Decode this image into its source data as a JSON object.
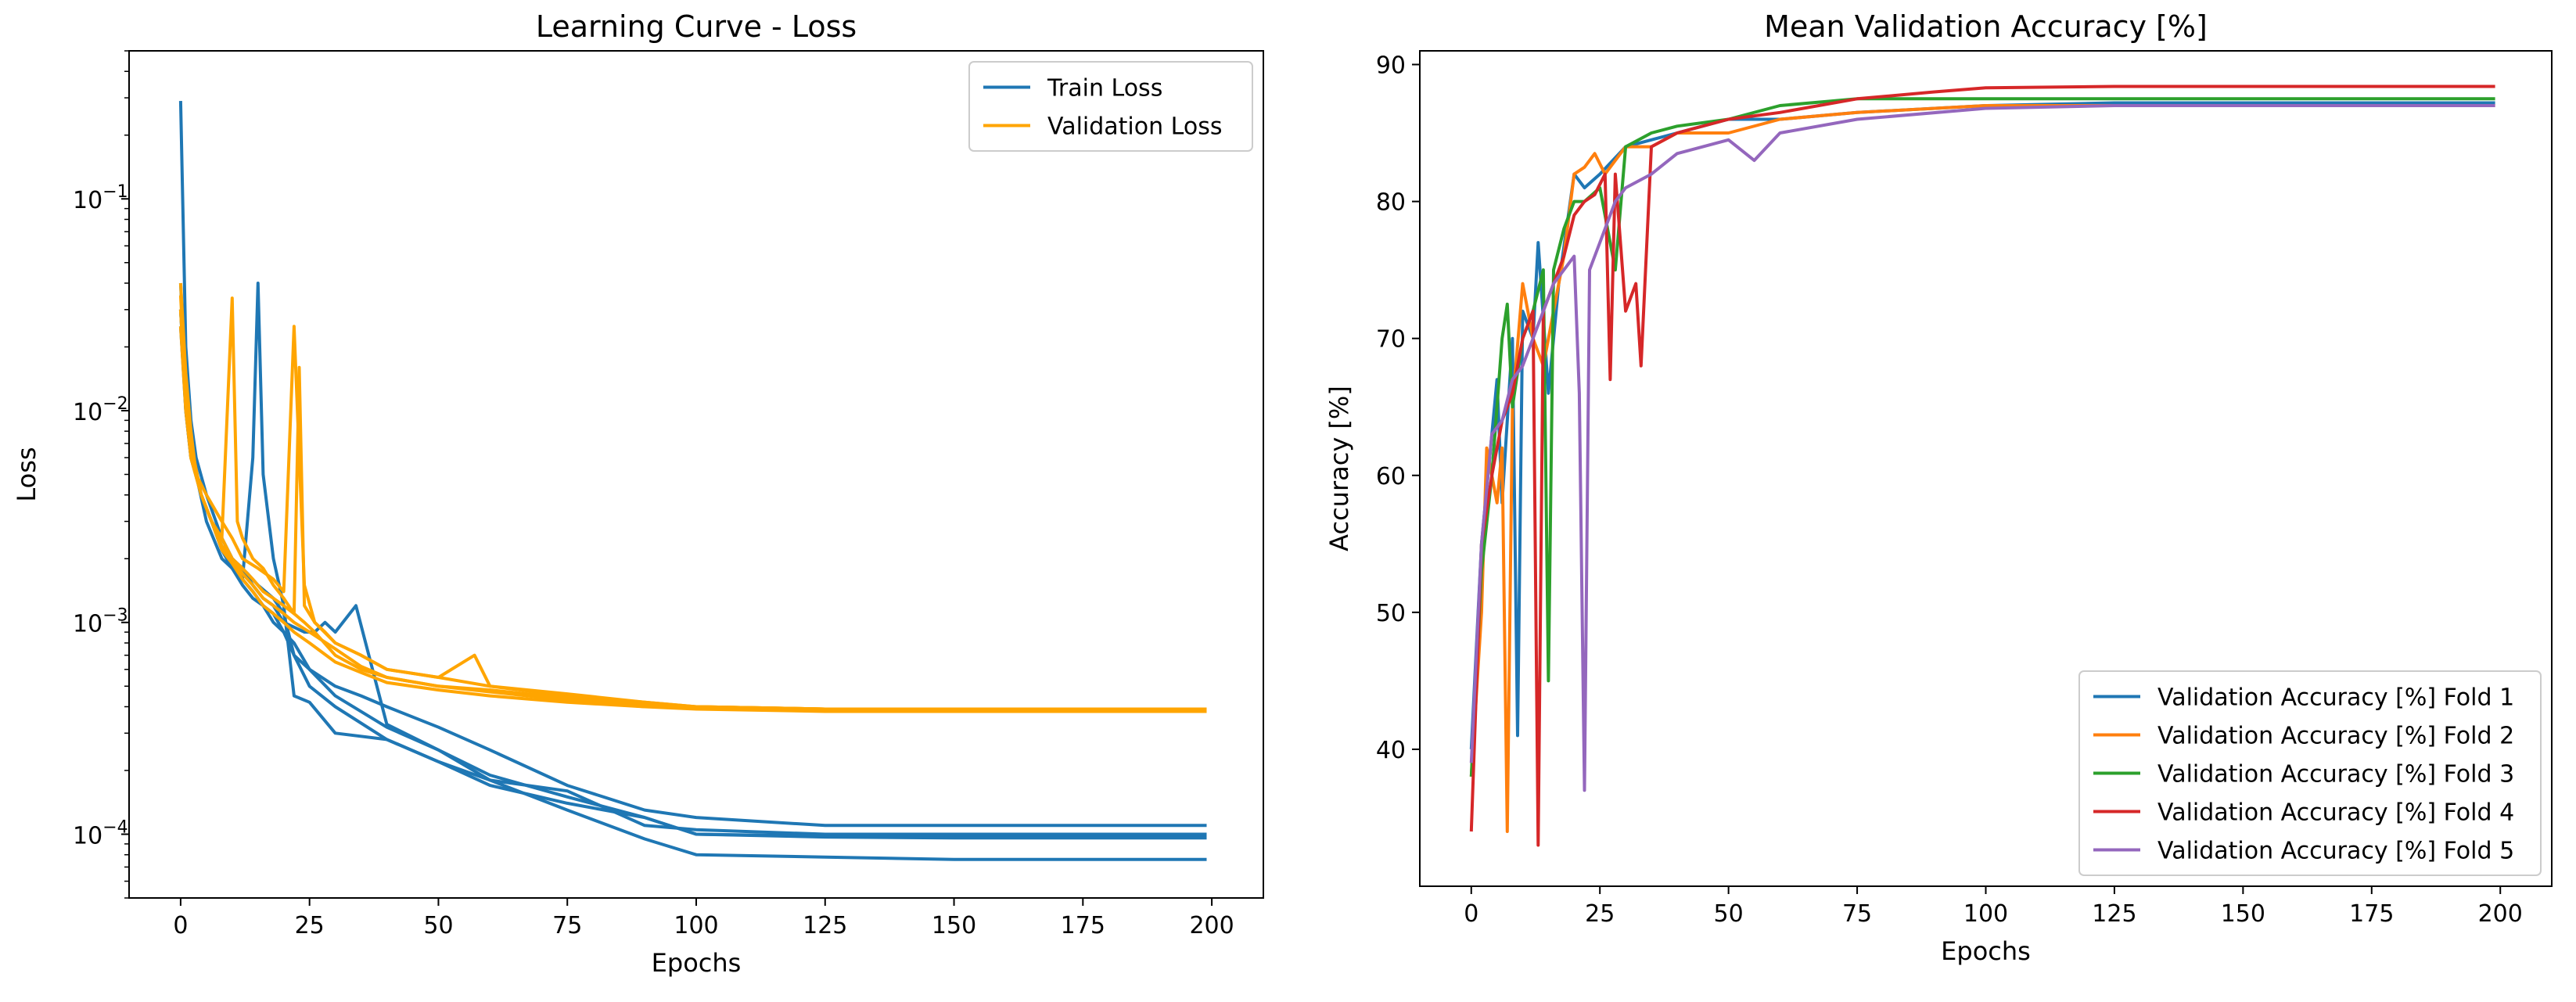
{
  "colors": {
    "train": "#1f77b4",
    "validation": "#ffa500",
    "fold1": "#1f77b4",
    "fold2": "#ff7f0e",
    "fold3": "#2ca02c",
    "fold4": "#d62728",
    "fold5": "#9467bd"
  },
  "chart_data": [
    {
      "type": "line",
      "title": "Learning Curve - Loss",
      "xlabel": "Epochs",
      "ylabel": "Loss",
      "yscale": "log",
      "xlim": [
        -10,
        210
      ],
      "ylim": [
        5e-05,
        0.5
      ],
      "xticks": [
        0,
        25,
        50,
        75,
        100,
        125,
        150,
        175,
        200
      ],
      "yticks": [
        {
          "value": 0.0001,
          "base": "10",
          "exp": "−4"
        },
        {
          "value": 0.001,
          "base": "10",
          "exp": "−3"
        },
        {
          "value": 0.01,
          "base": "10",
          "exp": "−2"
        },
        {
          "value": 0.1,
          "base": "10",
          "exp": "−1"
        }
      ],
      "legend": {
        "location": "top-right",
        "entries": [
          "Train Loss",
          "Validation Loss"
        ]
      },
      "series": [
        {
          "name": "Train Loss",
          "fold": 1,
          "color": "train",
          "x": [
            0,
            1,
            2,
            3,
            5,
            8,
            10,
            13,
            15,
            18,
            20,
            22,
            25,
            30,
            35,
            40,
            50,
            60,
            75,
            90,
            100,
            125,
            150,
            175,
            199
          ],
          "y": [
            0.29,
            0.02,
            0.009,
            0.006,
            0.004,
            0.0025,
            0.002,
            0.0017,
            0.0015,
            0.0013,
            0.0011,
            0.0007,
            0.0006,
            0.0005,
            0.00045,
            0.0004,
            0.00032,
            0.00025,
            0.00017,
            0.00013,
            0.00012,
            0.00011,
            0.00011,
            0.00011,
            0.00011
          ]
        },
        {
          "name": "Train Loss",
          "fold": 2,
          "color": "train",
          "x": [
            0,
            1,
            2,
            3,
            5,
            8,
            10,
            12,
            14,
            15,
            16,
            18,
            20,
            22,
            25,
            30,
            40,
            50,
            60,
            75,
            90,
            100,
            125,
            150,
            175,
            199
          ],
          "y": [
            0.03,
            0.012,
            0.006,
            0.005,
            0.003,
            0.002,
            0.0018,
            0.0016,
            0.006,
            0.04,
            0.005,
            0.002,
            0.0012,
            0.00045,
            0.00042,
            0.0003,
            0.00028,
            0.00022,
            0.00018,
            0.00016,
            0.00011,
            0.000105,
            0.0001,
            0.0001,
            0.0001,
            0.0001
          ]
        },
        {
          "name": "Train Loss",
          "fold": 3,
          "color": "train",
          "x": [
            0,
            1,
            2,
            4,
            6,
            8,
            10,
            12,
            14,
            16,
            18,
            20,
            22,
            24,
            26,
            28,
            30,
            34,
            40,
            50,
            60,
            75,
            90,
            100,
            125,
            150,
            175,
            199
          ],
          "y": [
            0.04,
            0.012,
            0.007,
            0.004,
            0.003,
            0.0025,
            0.002,
            0.0018,
            0.0015,
            0.0013,
            0.0012,
            0.001,
            0.00095,
            0.0009,
            0.0009,
            0.001,
            0.0009,
            0.0012,
            0.00033,
            0.00025,
            0.00019,
            0.00015,
            0.00012,
            0.0001,
            9.8e-05,
            9.7e-05,
            9.7e-05,
            9.7e-05
          ]
        },
        {
          "name": "Train Loss",
          "fold": 4,
          "color": "train",
          "x": [
            0,
            1,
            2,
            4,
            6,
            8,
            10,
            12,
            14,
            16,
            18,
            20,
            22,
            25,
            30,
            40,
            50,
            60,
            75,
            90,
            100,
            125,
            150,
            175,
            199
          ],
          "y": [
            0.03,
            0.01,
            0.006,
            0.004,
            0.003,
            0.0022,
            0.0018,
            0.0015,
            0.0013,
            0.0012,
            0.001,
            0.0009,
            0.0007,
            0.0005,
            0.0004,
            0.00028,
            0.00022,
            0.00017,
            0.00014,
            0.00012,
            0.0001,
            9.7e-05,
            9.6e-05,
            9.6e-05,
            9.6e-05
          ]
        },
        {
          "name": "Train Loss",
          "fold": 5,
          "color": "train",
          "x": [
            0,
            1,
            2,
            4,
            6,
            8,
            10,
            12,
            14,
            16,
            18,
            20,
            22,
            25,
            30,
            40,
            50,
            60,
            75,
            90,
            100,
            125,
            150,
            175,
            199
          ],
          "y": [
            0.025,
            0.01,
            0.006,
            0.004,
            0.003,
            0.0022,
            0.0018,
            0.0016,
            0.0014,
            0.0012,
            0.0011,
            0.0009,
            0.0008,
            0.0006,
            0.00045,
            0.00032,
            0.00025,
            0.00018,
            0.00013,
            9.5e-05,
            8e-05,
            7.8e-05,
            7.6e-05,
            7.6e-05,
            7.6e-05
          ]
        },
        {
          "name": "Validation Loss",
          "fold": 1,
          "color": "validation",
          "x": [
            0,
            1,
            2,
            3,
            5,
            8,
            10,
            12,
            15,
            18,
            20,
            22,
            24,
            26,
            28,
            30,
            35,
            40,
            50,
            60,
            75,
            90,
            100,
            125,
            150,
            175,
            199
          ],
          "y": [
            0.04,
            0.015,
            0.008,
            0.005,
            0.004,
            0.003,
            0.0025,
            0.002,
            0.0018,
            0.0016,
            0.0014,
            0.025,
            0.0015,
            0.001,
            0.0009,
            0.0008,
            0.0007,
            0.0006,
            0.00055,
            0.0005,
            0.00045,
            0.00042,
            0.0004,
            0.00039,
            0.00039,
            0.00039,
            0.00039
          ]
        },
        {
          "name": "Validation Loss",
          "fold": 2,
          "color": "validation",
          "x": [
            0,
            1,
            2,
            4,
            6,
            8,
            10,
            11,
            12,
            14,
            16,
            18,
            20,
            22,
            24,
            26,
            30,
            35,
            40,
            50,
            60,
            75,
            90,
            100,
            125,
            150,
            175,
            199
          ],
          "y": [
            0.035,
            0.012,
            0.007,
            0.004,
            0.003,
            0.0025,
            0.034,
            0.003,
            0.0025,
            0.002,
            0.0018,
            0.0015,
            0.0013,
            0.0011,
            0.001,
            0.0009,
            0.0007,
            0.0006,
            0.00055,
            0.0005,
            0.00048,
            0.00044,
            0.00041,
            0.0004,
            0.00039,
            0.00039,
            0.00039,
            0.00039
          ]
        },
        {
          "name": "Validation Loss",
          "fold": 3,
          "color": "validation",
          "x": [
            0,
            1,
            2,
            4,
            6,
            8,
            10,
            12,
            14,
            16,
            18,
            20,
            22,
            23,
            24,
            26,
            30,
            35,
            40,
            50,
            57,
            60,
            75,
            90,
            100,
            125,
            150,
            175,
            199
          ],
          "y": [
            0.03,
            0.012,
            0.006,
            0.004,
            0.003,
            0.0025,
            0.002,
            0.0018,
            0.0016,
            0.0014,
            0.0013,
            0.0012,
            0.0011,
            0.016,
            0.0012,
            0.001,
            0.0008,
            0.0007,
            0.0006,
            0.00055,
            0.0007,
            0.0005,
            0.00046,
            0.00042,
            0.0004,
            0.00039,
            0.00039,
            0.00039,
            0.00039
          ]
        },
        {
          "name": "Validation Loss",
          "fold": 4,
          "color": "validation",
          "x": [
            0,
            1,
            2,
            4,
            6,
            8,
            10,
            12,
            14,
            16,
            18,
            20,
            22,
            25,
            30,
            35,
            40,
            50,
            60,
            75,
            90,
            100,
            125,
            150,
            175,
            199
          ],
          "y": [
            0.025,
            0.01,
            0.006,
            0.004,
            0.003,
            0.0022,
            0.0019,
            0.0016,
            0.0014,
            0.0012,
            0.0011,
            0.001,
            0.0009,
            0.0008,
            0.00065,
            0.00058,
            0.00052,
            0.00048,
            0.00045,
            0.00042,
            0.0004,
            0.00039,
            0.00038,
            0.00038,
            0.00038,
            0.00038
          ]
        },
        {
          "name": "Validation Loss",
          "fold": 5,
          "color": "validation",
          "x": [
            0,
            1,
            2,
            4,
            6,
            8,
            10,
            12,
            14,
            16,
            18,
            20,
            22,
            25,
            30,
            35,
            40,
            50,
            60,
            75,
            90,
            100,
            125,
            150,
            175,
            199
          ],
          "y": [
            0.03,
            0.011,
            0.006,
            0.004,
            0.003,
            0.0023,
            0.002,
            0.0017,
            0.0015,
            0.0013,
            0.0012,
            0.0011,
            0.001,
            0.0009,
            0.00075,
            0.00062,
            0.00055,
            0.0005,
            0.00047,
            0.00043,
            0.0004,
            0.0004,
            0.00039,
            0.00039,
            0.00039,
            0.00039
          ]
        }
      ]
    },
    {
      "type": "line",
      "title": "Mean Validation Accuracy [%]",
      "xlabel": "Epochs",
      "ylabel": "Accuracy [%]",
      "yscale": "linear",
      "xlim": [
        -10,
        210
      ],
      "ylim": [
        30,
        91
      ],
      "xticks": [
        0,
        25,
        50,
        75,
        100,
        125,
        150,
        175,
        200
      ],
      "yticks": [
        40,
        50,
        60,
        70,
        80,
        90
      ],
      "legend": {
        "location": "bottom-right",
        "entries": [
          "Validation Accuracy [%] Fold 1",
          "Validation Accuracy [%] Fold 2",
          "Validation Accuracy [%] Fold 3",
          "Validation Accuracy [%] Fold 4",
          "Validation Accuracy [%] Fold 5"
        ]
      },
      "series": [
        {
          "name": "Validation Accuracy [%] Fold 1",
          "color": "fold1",
          "x": [
            0,
            2,
            4,
            5,
            6,
            8,
            9,
            10,
            12,
            13,
            15,
            17,
            20,
            22,
            25,
            30,
            35,
            40,
            50,
            60,
            75,
            100,
            125,
            150,
            175,
            199
          ],
          "y": [
            40,
            55,
            63,
            67,
            58,
            70,
            41,
            72,
            70,
            77,
            66,
            74,
            82,
            81,
            82,
            84,
            84.5,
            85,
            86,
            86,
            86.5,
            87,
            87.2,
            87.2,
            87.2,
            87.2
          ]
        },
        {
          "name": "Validation Accuracy [%] Fold 2",
          "color": "fold2",
          "x": [
            0,
            2,
            3,
            5,
            6,
            7,
            8,
            10,
            12,
            14,
            16,
            18,
            20,
            22,
            24,
            26,
            30,
            35,
            40,
            50,
            60,
            75,
            100,
            125,
            150,
            175,
            199
          ],
          "y": [
            38,
            50,
            62,
            58,
            62,
            34,
            65,
            74,
            70,
            68,
            72,
            76,
            82,
            82.5,
            83.5,
            82,
            84,
            84,
            85,
            85,
            86,
            86.5,
            87,
            87,
            87,
            87,
            87
          ]
        },
        {
          "name": "Validation Accuracy [%] Fold 3",
          "color": "fold3",
          "x": [
            0,
            2,
            4,
            6,
            7,
            8,
            10,
            12,
            14,
            15,
            16,
            18,
            20,
            22,
            25,
            28,
            30,
            35,
            40,
            50,
            60,
            75,
            100,
            125,
            150,
            175,
            199
          ],
          "y": [
            38,
            53,
            60,
            70,
            72.5,
            65,
            70,
            72,
            75,
            45,
            75,
            78,
            80,
            80,
            81,
            75,
            84,
            85,
            85.5,
            86,
            87,
            87.5,
            87.5,
            87.5,
            87.5,
            87.5,
            87.5
          ]
        },
        {
          "name": "Validation Accuracy [%] Fold 4",
          "color": "fold4",
          "x": [
            0,
            2,
            4,
            6,
            8,
            10,
            12,
            13,
            14,
            16,
            18,
            20,
            22,
            24,
            26,
            27,
            28,
            30,
            32,
            33,
            35,
            40,
            50,
            60,
            75,
            90,
            100,
            125,
            150,
            175,
            199
          ],
          "y": [
            34,
            55,
            60,
            64,
            66,
            70,
            72,
            33,
            72,
            74,
            76,
            79,
            80,
            80.5,
            82,
            67,
            82,
            72,
            74,
            68,
            84,
            85,
            86,
            86.5,
            87.5,
            88,
            88.3,
            88.4,
            88.4,
            88.4,
            88.4
          ]
        },
        {
          "name": "Validation Accuracy [%] Fold 5",
          "color": "fold5",
          "x": [
            0,
            2,
            4,
            6,
            8,
            10,
            12,
            14,
            16,
            18,
            20,
            21,
            22,
            23,
            25,
            28,
            30,
            35,
            40,
            45,
            50,
            55,
            60,
            75,
            100,
            125,
            150,
            175,
            199
          ],
          "y": [
            39,
            55,
            63,
            64,
            67,
            68,
            70,
            72,
            74,
            75,
            76,
            66,
            37,
            75,
            77,
            80,
            81,
            82,
            83.5,
            84,
            84.5,
            83,
            85,
            86,
            86.8,
            87,
            87,
            87,
            87
          ]
        }
      ]
    }
  ]
}
